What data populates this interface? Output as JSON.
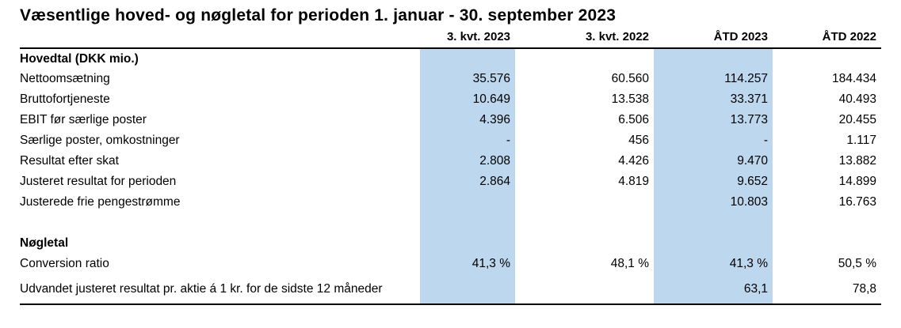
{
  "title": "Væsentlige hoved- og nøgletal for perioden 1. januar - 30. september 2023",
  "colors": {
    "highlight": "#BDD7EE",
    "text": "#000000",
    "rule": "#000000"
  },
  "table": {
    "columns": [
      "",
      "3. kvt. 2023",
      "3. kvt. 2022",
      "ÅTD 2023",
      "ÅTD 2022"
    ],
    "highlighted_columns": [
      "3. kvt. 2023",
      "ÅTD 2023"
    ],
    "rows": [
      {
        "label": "Hovedtal (DKK mio.)",
        "values": [
          "",
          "",
          "",
          ""
        ]
      },
      {
        "label": "Nettoomsætning",
        "values": [
          "35.576",
          "60.560",
          "114.257",
          "184.434"
        ]
      },
      {
        "label": "Bruttofortjeneste",
        "values": [
          "10.649",
          "13.538",
          "33.371",
          "40.493"
        ]
      },
      {
        "label": "EBIT før særlige poster",
        "values": [
          "4.396",
          "6.506",
          "13.773",
          "20.455"
        ]
      },
      {
        "label": "Særlige poster, omkostninger",
        "values": [
          "-",
          "456",
          "-",
          "1.117"
        ]
      },
      {
        "label": "Resultat efter skat",
        "values": [
          "2.808",
          "4.426",
          "9.470",
          "13.882"
        ]
      },
      {
        "label": "Justeret resultat for perioden",
        "values": [
          "2.864",
          "4.819",
          "9.652",
          "14.899"
        ]
      },
      {
        "label": "Justerede frie pengestrømme",
        "values": [
          "",
          "",
          "10.803",
          "16.763"
        ]
      },
      {
        "label": "",
        "values": [
          "",
          "",
          "",
          ""
        ]
      },
      {
        "label": "Nøgletal",
        "values": [
          "",
          "",
          "",
          ""
        ]
      },
      {
        "label": "Conversion ratio",
        "values": [
          "41,3 %",
          "48,1 %",
          "41,3 %",
          "50,5 %"
        ]
      },
      {
        "label": "Udvandet justeret resultat pr. aktie á 1 kr. for de sidste 12 måneder",
        "values": [
          "",
          "",
          "63,1",
          "78,8"
        ]
      }
    ]
  }
}
